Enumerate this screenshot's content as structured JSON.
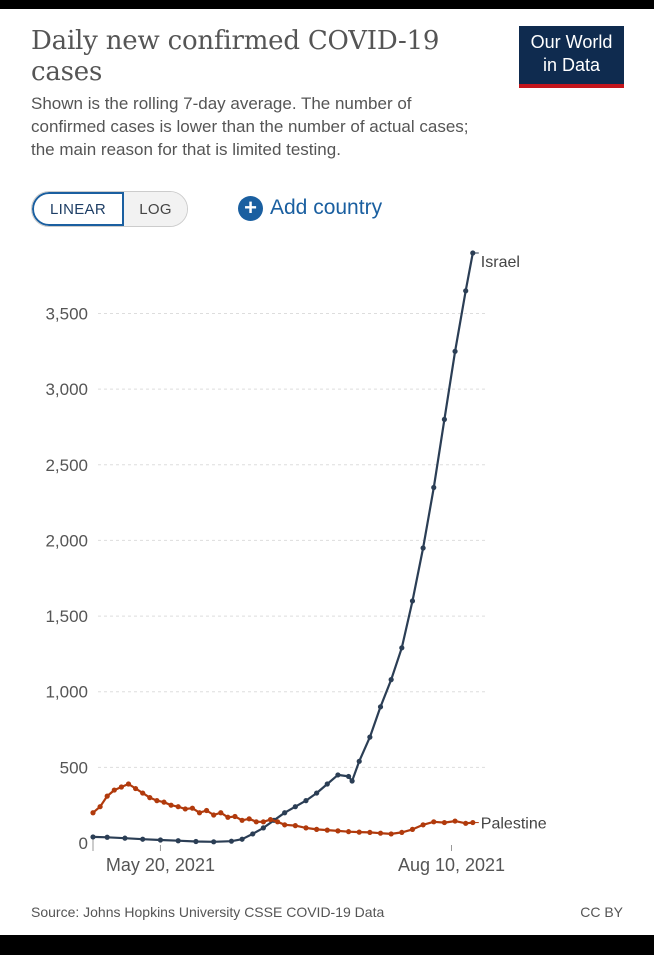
{
  "header": {
    "title": "Daily new confirmed COVID-19 cases",
    "subtitle": "Shown is the rolling 7-day average. The number of confirmed cases is lower than the number of actual cases; the main reason for that is limited testing.",
    "logo_line1": "Our World",
    "logo_line2": "in Data"
  },
  "controls": {
    "linear_label": "LINEAR",
    "log_label": "LOG",
    "add_country_label": "Add country"
  },
  "footer": {
    "source": "Source: Johns Hopkins University CSSE COVID-19 Data",
    "license": "CC BY"
  },
  "colors": {
    "israel": "#2b3e55",
    "palestine": "#b13a0c",
    "grid": "#dddddd",
    "axis_text": "#555555"
  },
  "chart_data": {
    "type": "line",
    "title": "Daily new confirmed COVID-19 cases",
    "x_start": "2021-05-01",
    "x_end": "2021-08-20",
    "x_ticks": [
      {
        "date": "2021-05-20",
        "label": "May 20, 2021"
      },
      {
        "date": "2021-08-10",
        "label": "Aug 10, 2021"
      }
    ],
    "y_ticks": [
      0,
      500,
      1000,
      1500,
      2000,
      2500,
      3000,
      3500
    ],
    "y_tick_labels": [
      "0",
      "500",
      "1,000",
      "1,500",
      "2,000",
      "2,500",
      "3,000",
      "3,500"
    ],
    "ylim": [
      0,
      3900
    ],
    "grid": "horizontal-dashed",
    "legend": "line-end labels",
    "series": [
      {
        "name": "Israel",
        "color": "#2b3e55",
        "points": [
          [
            "2021-05-01",
            40
          ],
          [
            "2021-05-05",
            38
          ],
          [
            "2021-05-10",
            32
          ],
          [
            "2021-05-15",
            25
          ],
          [
            "2021-05-20",
            20
          ],
          [
            "2021-05-25",
            15
          ],
          [
            "2021-05-30",
            10
          ],
          [
            "2021-06-04",
            8
          ],
          [
            "2021-06-09",
            12
          ],
          [
            "2021-06-12",
            25
          ],
          [
            "2021-06-15",
            60
          ],
          [
            "2021-06-18",
            100
          ],
          [
            "2021-06-21",
            150
          ],
          [
            "2021-06-24",
            200
          ],
          [
            "2021-06-27",
            240
          ],
          [
            "2021-06-30",
            280
          ],
          [
            "2021-07-03",
            330
          ],
          [
            "2021-07-06",
            390
          ],
          [
            "2021-07-09",
            450
          ],
          [
            "2021-07-12",
            440
          ],
          [
            "2021-07-13",
            410
          ],
          [
            "2021-07-15",
            540
          ],
          [
            "2021-07-18",
            700
          ],
          [
            "2021-07-21",
            900
          ],
          [
            "2021-07-24",
            1080
          ],
          [
            "2021-07-27",
            1290
          ],
          [
            "2021-07-30",
            1600
          ],
          [
            "2021-08-02",
            1950
          ],
          [
            "2021-08-05",
            2350
          ],
          [
            "2021-08-08",
            2800
          ],
          [
            "2021-08-11",
            3250
          ],
          [
            "2021-08-14",
            3650
          ],
          [
            "2021-08-16",
            3900
          ]
        ]
      },
      {
        "name": "Palestine",
        "color": "#b13a0c",
        "points": [
          [
            "2021-05-01",
            200
          ],
          [
            "2021-05-03",
            240
          ],
          [
            "2021-05-05",
            310
          ],
          [
            "2021-05-07",
            350
          ],
          [
            "2021-05-09",
            370
          ],
          [
            "2021-05-11",
            390
          ],
          [
            "2021-05-13",
            360
          ],
          [
            "2021-05-15",
            330
          ],
          [
            "2021-05-17",
            300
          ],
          [
            "2021-05-19",
            280
          ],
          [
            "2021-05-21",
            270
          ],
          [
            "2021-05-23",
            250
          ],
          [
            "2021-05-25",
            240
          ],
          [
            "2021-05-27",
            225
          ],
          [
            "2021-05-29",
            230
          ],
          [
            "2021-05-31",
            200
          ],
          [
            "2021-06-02",
            215
          ],
          [
            "2021-06-04",
            185
          ],
          [
            "2021-06-06",
            200
          ],
          [
            "2021-06-08",
            170
          ],
          [
            "2021-06-10",
            175
          ],
          [
            "2021-06-12",
            150
          ],
          [
            "2021-06-14",
            160
          ],
          [
            "2021-06-16",
            140
          ],
          [
            "2021-06-18",
            140
          ],
          [
            "2021-06-20",
            155
          ],
          [
            "2021-06-22",
            140
          ],
          [
            "2021-06-24",
            120
          ],
          [
            "2021-06-27",
            115
          ],
          [
            "2021-06-30",
            100
          ],
          [
            "2021-07-03",
            90
          ],
          [
            "2021-07-06",
            85
          ],
          [
            "2021-07-09",
            80
          ],
          [
            "2021-07-12",
            75
          ],
          [
            "2021-07-15",
            72
          ],
          [
            "2021-07-18",
            70
          ],
          [
            "2021-07-21",
            65
          ],
          [
            "2021-07-24",
            60
          ],
          [
            "2021-07-27",
            70
          ],
          [
            "2021-07-30",
            90
          ],
          [
            "2021-08-02",
            120
          ],
          [
            "2021-08-05",
            140
          ],
          [
            "2021-08-08",
            135
          ],
          [
            "2021-08-11",
            145
          ],
          [
            "2021-08-14",
            130
          ],
          [
            "2021-08-16",
            135
          ]
        ]
      }
    ]
  }
}
